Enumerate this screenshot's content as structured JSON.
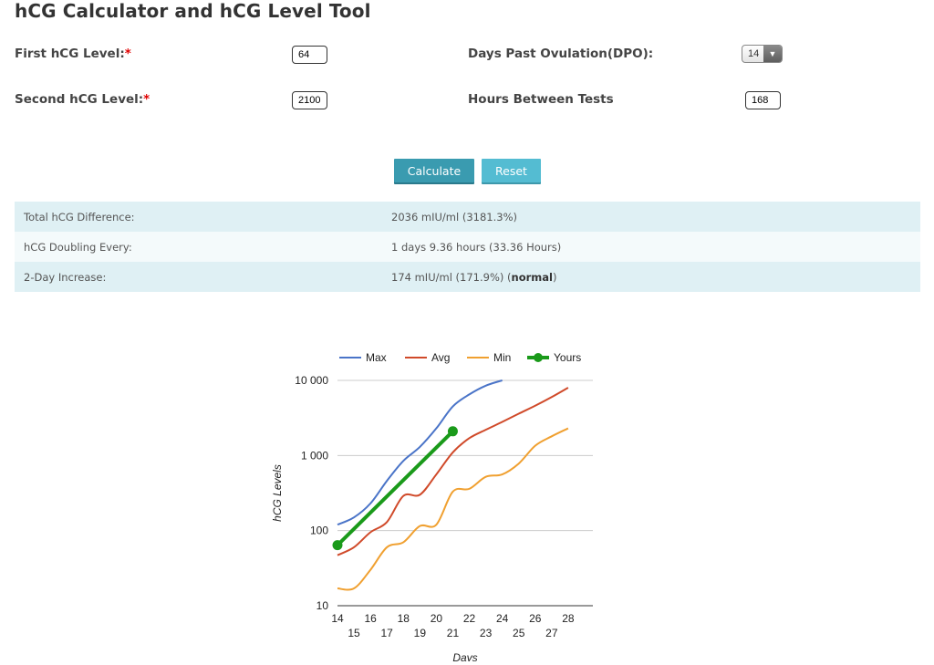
{
  "page": {
    "title": "hCG Calculator and hCG Level Tool"
  },
  "form": {
    "first_label": "First hCG Level:",
    "second_label": "Second hCG Level:",
    "required_mark": "*",
    "first_value": "64",
    "second_value": "2100",
    "dpo_label": "Days Past Ovulation(DPO):",
    "dpo_value": "14",
    "hours_label": "Hours Between Tests",
    "hours_value": "168"
  },
  "buttons": {
    "calculate": "Calculate",
    "reset": "Reset"
  },
  "results": {
    "rows": [
      {
        "label": "Total hCG Difference:",
        "value": "2036 mIU/ml (3181.3%)"
      },
      {
        "label": "hCG Doubling Every:",
        "value": "1 days 9.36 hours (33.36 Hours)"
      },
      {
        "label": "2-Day Increase:",
        "value_prefix": "174 mIU/ml (171.9%) (",
        "value_bold": "normal",
        "value_suffix": ")"
      }
    ]
  },
  "chart_data": {
    "type": "line",
    "xlabel": "Days",
    "ylabel": "hCG Levels",
    "x_ticks": [
      14,
      15,
      16,
      17,
      18,
      19,
      20,
      21,
      22,
      23,
      24,
      25,
      26,
      27,
      28
    ],
    "y_ticks": [
      10,
      100,
      1000,
      10000
    ],
    "y_tick_labels": [
      "10",
      "100",
      "1 000",
      "10 000"
    ],
    "y_scale": "log",
    "ylim": [
      10,
      10000
    ],
    "xlim": [
      14,
      29.5
    ],
    "legend_position": "top",
    "grid": true,
    "series": [
      {
        "name": "Max",
        "color": "#4a74c8",
        "points": [
          [
            14,
            120
          ],
          [
            15,
            150
          ],
          [
            16,
            230
          ],
          [
            17,
            460
          ],
          [
            18,
            850
          ],
          [
            19,
            1300
          ],
          [
            20,
            2300
          ],
          [
            21,
            4500
          ],
          [
            22,
            6500
          ],
          [
            23,
            8500
          ],
          [
            24,
            10000
          ]
        ]
      },
      {
        "name": "Avg",
        "color": "#d04a2a",
        "points": [
          [
            14,
            47
          ],
          [
            15,
            60
          ],
          [
            16,
            95
          ],
          [
            17,
            130
          ],
          [
            18,
            290
          ],
          [
            19,
            300
          ],
          [
            20,
            560
          ],
          [
            21,
            1100
          ],
          [
            22,
            1700
          ],
          [
            23,
            2200
          ],
          [
            24,
            2800
          ],
          [
            25,
            3600
          ],
          [
            26,
            4600
          ],
          [
            27,
            6000
          ],
          [
            28,
            8000
          ]
        ]
      },
      {
        "name": "Min",
        "color": "#f0a030",
        "points": [
          [
            14,
            17
          ],
          [
            15,
            17
          ],
          [
            16,
            30
          ],
          [
            17,
            60
          ],
          [
            18,
            70
          ],
          [
            19,
            115
          ],
          [
            20,
            120
          ],
          [
            21,
            330
          ],
          [
            22,
            360
          ],
          [
            23,
            520
          ],
          [
            24,
            560
          ],
          [
            25,
            780
          ],
          [
            26,
            1350
          ],
          [
            27,
            1800
          ],
          [
            28,
            2300
          ]
        ]
      },
      {
        "name": "Yours",
        "color": "#1a9a1a",
        "points": [
          [
            14,
            64
          ],
          [
            21,
            2100
          ]
        ]
      }
    ]
  }
}
